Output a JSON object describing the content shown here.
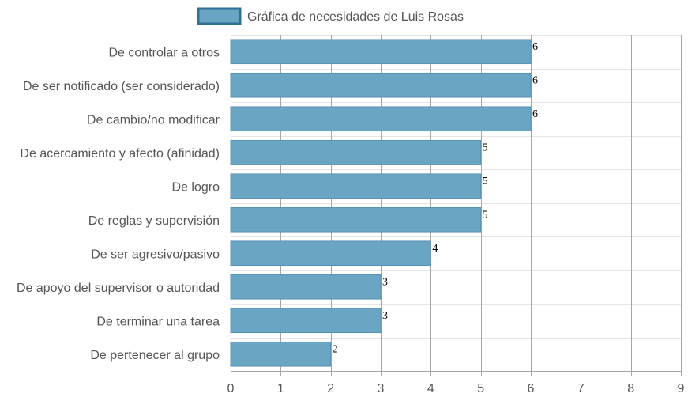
{
  "chart_data": {
    "type": "bar",
    "orientation": "horizontal",
    "categories": [
      "De controlar a otros",
      "De ser notificado (ser considerado)",
      "De cambio/no modificar",
      "De acercamiento y afecto (afinidad)",
      "De logro",
      "De reglas y supervisión",
      "De ser agresivo/pasivo",
      "De apoyo del supervisor o autoridad",
      "De terminar una tarea",
      "De pertenecer al grupo"
    ],
    "series": [
      {
        "name": "Gráfica de necesidades de Luis Rosas",
        "values": [
          6,
          6,
          6,
          5,
          5,
          5,
          4,
          3,
          3,
          2
        ]
      }
    ],
    "data_labels": [
      "6",
      "6",
      "6",
      "5",
      "5",
      "5",
      "4",
      "3",
      "3",
      "2"
    ],
    "x_ticks": [
      "0",
      "1",
      "2",
      "3",
      "4",
      "5",
      "6",
      "7",
      "8",
      "9"
    ],
    "xlim": [
      0,
      9
    ],
    "grid": true,
    "legend_position": "top",
    "colors": {
      "bar_fill": "#6ba5c4",
      "bar_stroke": "#5a93b3",
      "legend_stroke": "#2e7197",
      "grid": "#bfbfbf",
      "grid_major": "#999999"
    }
  }
}
